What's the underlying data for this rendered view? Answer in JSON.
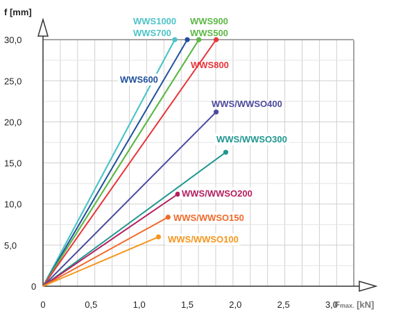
{
  "chart_data": {
    "type": "line",
    "ylabel": "f [mm]",
    "xlabel_prefix": "F",
    "xlabel_sub": "max.",
    "xlabel_unit": " [kN]",
    "xlim": [
      0,
      3.0
    ],
    "ylim": [
      0,
      30
    ],
    "grid": true,
    "x_ticks": [
      "0",
      "0,5",
      "1,0",
      "1,5",
      "2,0",
      "2,5",
      "3,0"
    ],
    "y_ticks": [
      "0",
      "5,0",
      "10,0",
      "15,0",
      "20,0",
      "25,0",
      "30,0"
    ],
    "series": [
      {
        "name": "WWS1000",
        "color": "#4cc4c8",
        "x": [
          0,
          1.37
        ],
        "y": [
          0,
          30
        ]
      },
      {
        "name": "WWS700",
        "color": "#4cc4c8",
        "x": [
          0,
          1.37
        ],
        "y": [
          0,
          30
        ]
      },
      {
        "name": "WWS600",
        "color": "#1f4f9c",
        "x": [
          0,
          1.5
        ],
        "y": [
          0,
          30
        ]
      },
      {
        "name": "WWS900",
        "color": "#5cb846",
        "x": [
          0,
          1.62
        ],
        "y": [
          0,
          30
        ]
      },
      {
        "name": "WWS500",
        "color": "#5cb846",
        "x": [
          0,
          1.62
        ],
        "y": [
          0,
          30
        ]
      },
      {
        "name": "WWS800",
        "color": "#e8343a",
        "x": [
          0,
          1.8
        ],
        "y": [
          0,
          30
        ]
      },
      {
        "name": "WWS/WWSO400",
        "color": "#4b4a9e",
        "x": [
          0,
          1.8
        ],
        "y": [
          0,
          21.2
        ]
      },
      {
        "name": "WWS/WWSO300",
        "color": "#1f9690",
        "x": [
          0,
          1.9
        ],
        "y": [
          0,
          16.3
        ]
      },
      {
        "name": "WWS/WWSO200",
        "color": "#b32060",
        "x": [
          0,
          1.4
        ],
        "y": [
          0,
          11.2
        ]
      },
      {
        "name": "WWS/WWSO150",
        "color": "#f06a2a",
        "x": [
          0,
          1.3
        ],
        "y": [
          0,
          8.4
        ]
      },
      {
        "name": "WWS/WWSO100",
        "color": "#f5961e",
        "x": [
          0,
          1.2
        ],
        "y": [
          0,
          6.0
        ]
      }
    ]
  }
}
